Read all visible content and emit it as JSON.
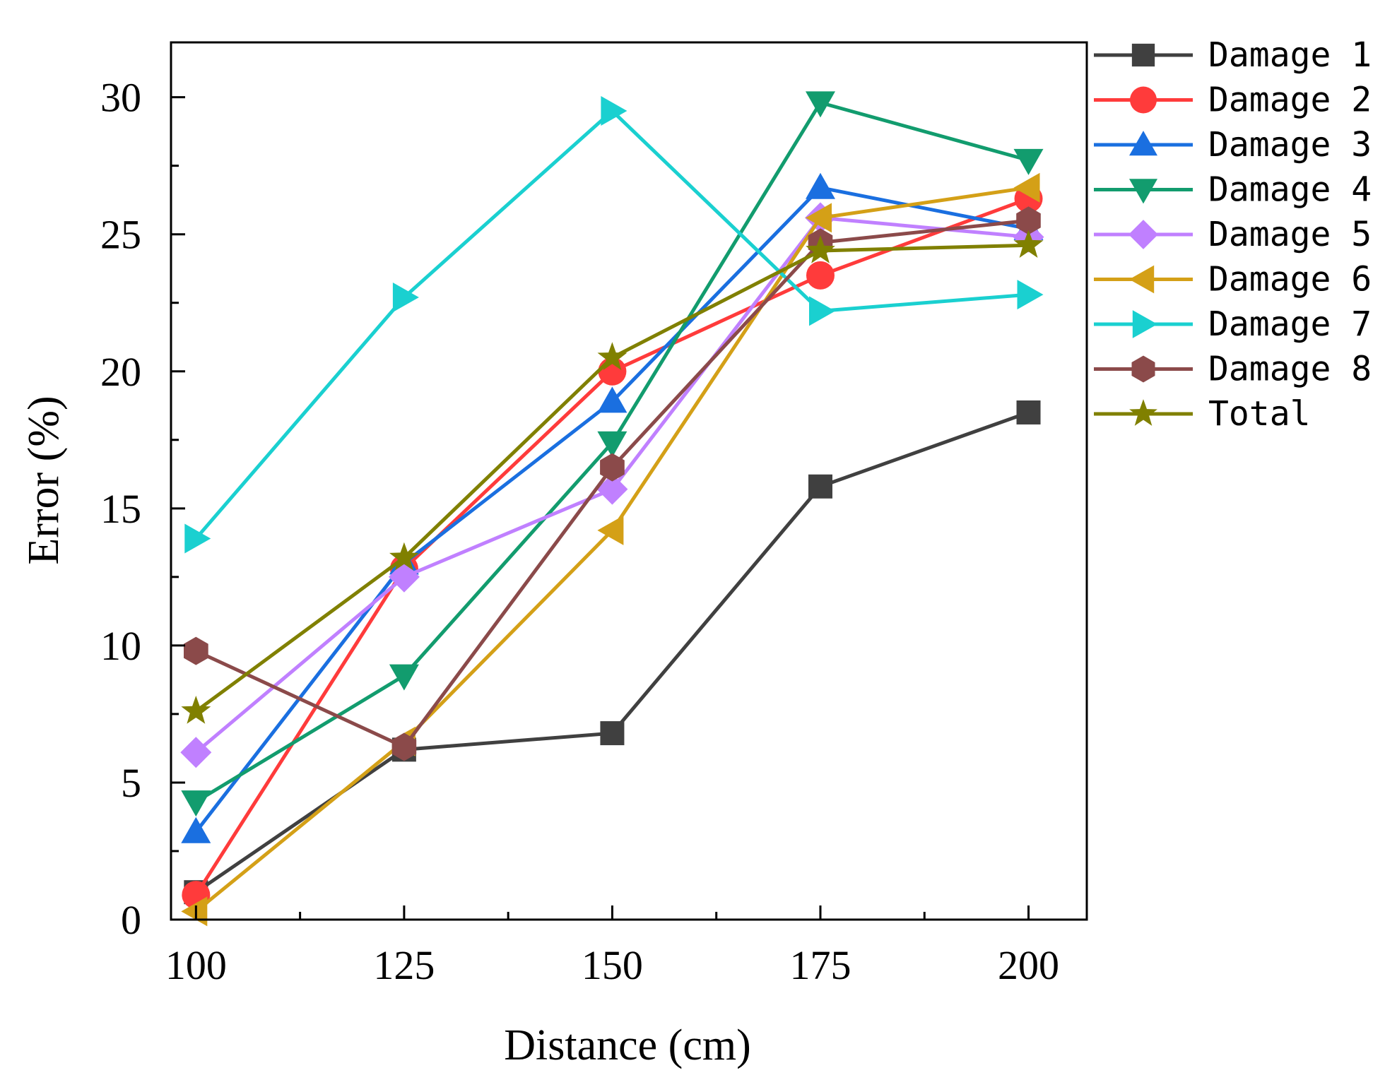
{
  "chart_data": {
    "type": "line",
    "xlabel": "Distance (cm)",
    "ylabel": "Error (%)",
    "xlim": [
      97,
      207
    ],
    "ylim": [
      0,
      32
    ],
    "xticks": [
      100,
      125,
      150,
      175,
      200
    ],
    "xtick_labels": [
      "100",
      "125",
      "150",
      "175",
      "200"
    ],
    "yticks": [
      0,
      5,
      10,
      15,
      20,
      25,
      30
    ],
    "ytick_labels": [
      "0",
      "5",
      "10",
      "15",
      "20",
      "25",
      "30"
    ],
    "x": [
      100,
      125,
      150,
      175,
      200
    ],
    "legend_position": "right, outside plot",
    "grid": false,
    "series": [
      {
        "name": "Damage 1",
        "color": "#404040",
        "marker": "square",
        "values": [
          1.0,
          6.2,
          6.8,
          15.8,
          18.5
        ]
      },
      {
        "name": "Damage 2",
        "color": "#ff3b3b",
        "marker": "circle",
        "values": [
          0.9,
          12.8,
          20.0,
          23.5,
          26.3
        ]
      },
      {
        "name": "Damage 3",
        "color": "#1a6fe0",
        "marker": "triangle-up",
        "values": [
          3.2,
          13.0,
          18.9,
          26.7,
          25.2
        ]
      },
      {
        "name": "Damage 4",
        "color": "#129c6e",
        "marker": "triangle-down",
        "values": [
          4.3,
          8.9,
          17.4,
          29.8,
          27.7
        ]
      },
      {
        "name": "Damage 5",
        "color": "#c080ff",
        "marker": "diamond",
        "values": [
          6.1,
          12.5,
          15.7,
          25.6,
          24.9
        ]
      },
      {
        "name": "Damage 6",
        "color": "#d4a017",
        "marker": "triangle-left",
        "values": [
          0.3,
          6.5,
          14.2,
          25.6,
          26.7
        ]
      },
      {
        "name": "Damage 7",
        "color": "#1ad0d0",
        "marker": "triangle-right",
        "values": [
          13.9,
          22.7,
          29.5,
          22.2,
          22.8
        ]
      },
      {
        "name": "Damage 8",
        "color": "#8b4a4a",
        "marker": "hexagon",
        "values": [
          9.8,
          6.3,
          16.5,
          24.7,
          25.5
        ]
      },
      {
        "name": "Total",
        "color": "#808000",
        "marker": "star",
        "values": [
          7.6,
          13.2,
          20.5,
          24.4,
          24.6
        ]
      }
    ]
  }
}
